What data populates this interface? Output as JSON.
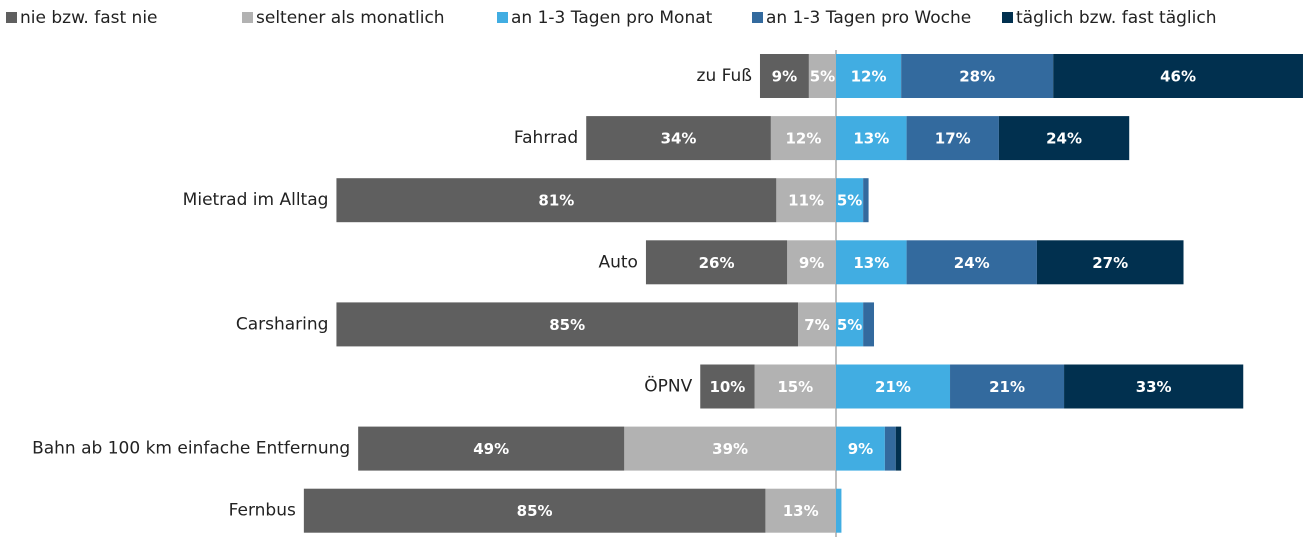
{
  "chart_data": {
    "type": "diverging_stacked_bar",
    "categories": [
      "zu Fuß",
      "Fahrrad",
      "Mietrad im Alltag",
      "Auto",
      "Carsharing",
      "ÖPNV",
      "Bahn ab 100 km einfache Entfernung",
      "Fernbus"
    ],
    "series": [
      {
        "name": "nie bzw. fast nie",
        "color": "#5f5f5f",
        "values": [
          9,
          34,
          81,
          26,
          85,
          10,
          49,
          85
        ],
        "value_labels": [
          "9%",
          "34%",
          "81%",
          "26%",
          "85%",
          "10%",
          "49%",
          "85%"
        ]
      },
      {
        "name": "seltener als monatlich",
        "color": "#b2b2b2",
        "values": [
          5,
          12,
          11,
          9,
          7,
          15,
          39,
          13
        ],
        "value_labels": [
          "5%",
          "12%",
          "11%",
          "9%",
          "7%",
          "15%",
          "39%",
          "13%"
        ]
      },
      {
        "name": "an 1-3 Tagen pro Monat",
        "color": "#41ade2",
        "values": [
          12,
          13,
          5,
          13,
          5,
          21,
          9,
          1
        ],
        "value_labels": [
          "12%",
          "13%",
          "5%",
          "13%",
          "5%",
          "21%",
          "9%",
          null
        ]
      },
      {
        "name": "an 1-3 Tagen pro Woche",
        "color": "#336a9e",
        "values": [
          28,
          17,
          1,
          24,
          2,
          21,
          2,
          0
        ],
        "value_labels": [
          "28%",
          "17%",
          null,
          "24%",
          null,
          "21%",
          null,
          null
        ]
      },
      {
        "name": "täglich bzw. fast täglich",
        "color": "#01304f",
        "values": [
          46,
          24,
          0,
          27,
          0,
          33,
          1,
          0
        ],
        "value_labels": [
          "46%",
          "24%",
          null,
          "27%",
          null,
          "33%",
          null,
          null
        ]
      }
    ],
    "negative_series": 2,
    "legend": "top"
  }
}
